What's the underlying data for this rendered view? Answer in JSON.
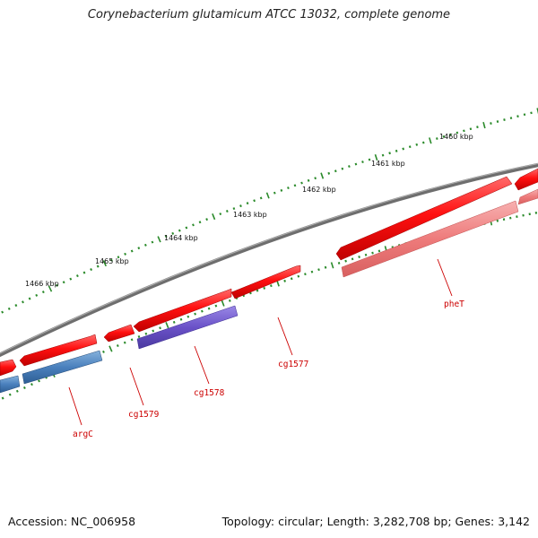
{
  "title": "Corynebacterium glutamicum ATCC 13032, complete genome",
  "footer": {
    "accession": "Accession: NC_006958",
    "summary": "Topology: circular; Length: 3,282,708 bp; Genes: 3,142"
  },
  "colors": {
    "backbone": "#7a7a7a",
    "forward_cds": "#ff1a1a",
    "reverse_cds_pink": "#f08080",
    "reverse_cds_purple": "#6a52c8",
    "reverse_cds_blue": "#4a80bd",
    "outer_ticks": "#2a8a2a",
    "inner_ticks": "#2a8a2a",
    "gene_label": "#cc0000"
  },
  "scale_labels": [
    "1460 kbp",
    "1461 kbp",
    "1462 kbp",
    "1463 kbp",
    "1464 kbp",
    "1465 kbp",
    "1466 kbp"
  ],
  "gene_labels": [
    "pheT",
    "cg1577",
    "cg1578",
    "cg1579",
    "argC"
  ]
}
